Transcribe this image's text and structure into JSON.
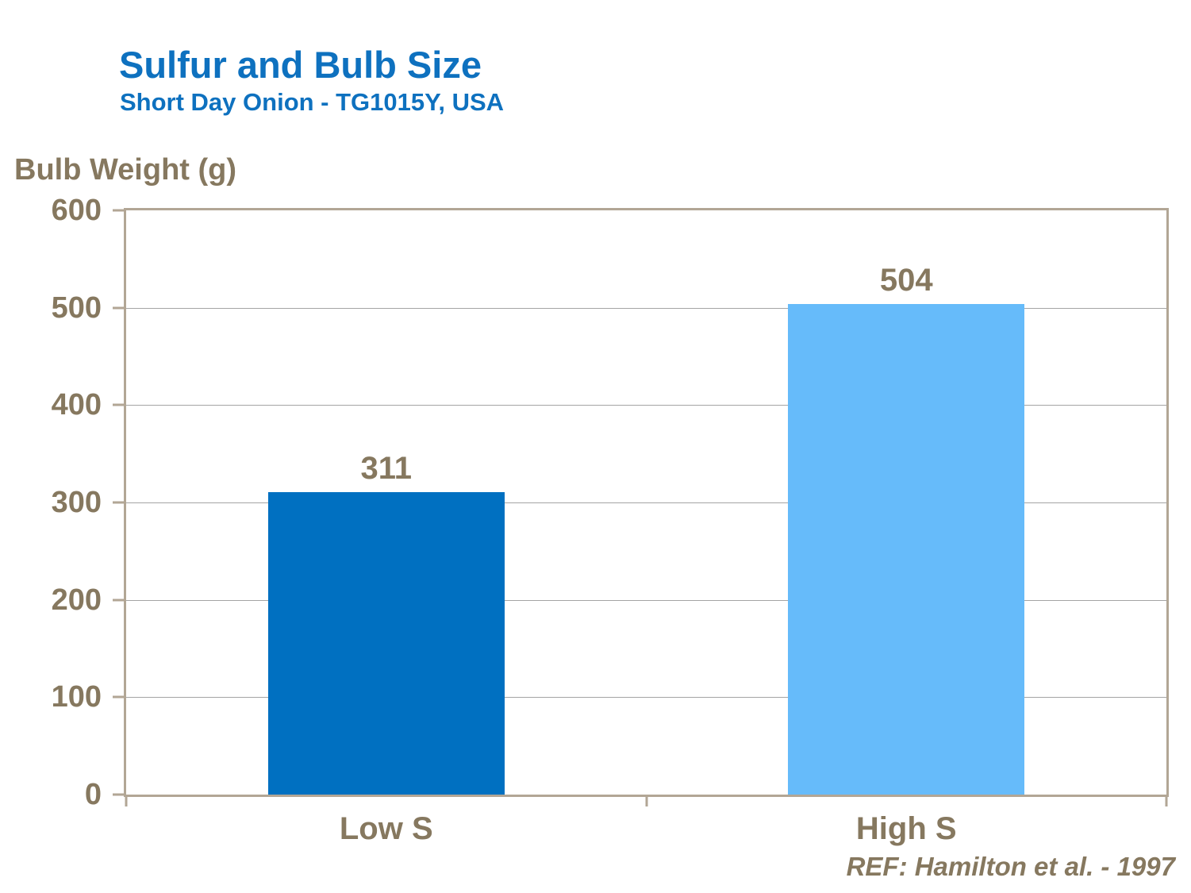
{
  "chart_data": {
    "type": "bar",
    "title": "Sulfur and Bulb Size",
    "subtitle": "Short Day Onion - TG1015Y, USA",
    "ylabel": "Bulb Weight (g)",
    "categories": [
      "Low S",
      "High S"
    ],
    "values": [
      311,
      504
    ],
    "bar_colors": [
      "#0070C1",
      "#66BBFA"
    ],
    "ylim": [
      0,
      600
    ],
    "yticks": [
      0,
      100,
      200,
      300,
      400,
      500,
      600
    ],
    "grid": true,
    "legend_position": "none",
    "reference": "REF: Hamilton et al. - 1997"
  },
  "colors": {
    "title_blue": "#0E71BF",
    "axis_brown": "#86785F",
    "frame_tan": "#B2A695",
    "gridline_gray": "#A4A4A4"
  }
}
